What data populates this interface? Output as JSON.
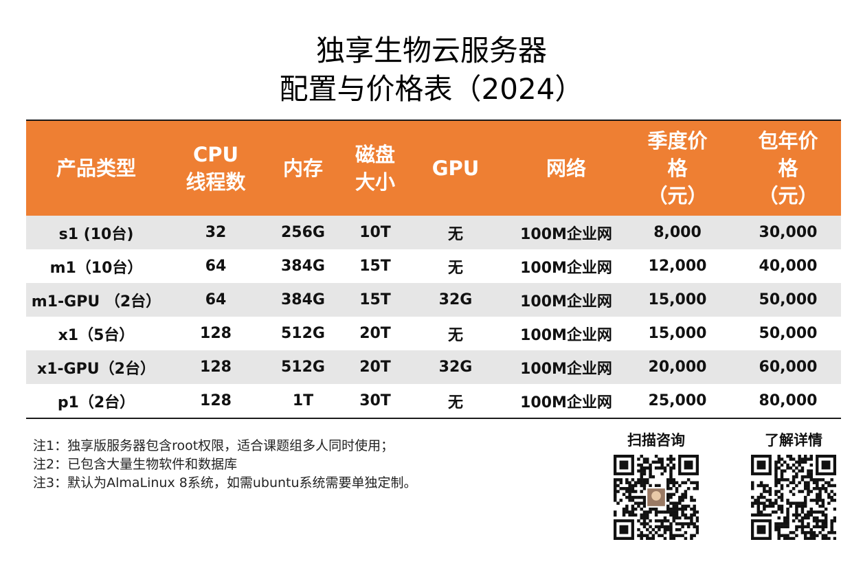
{
  "title": {
    "line1": "独享生物云服务器",
    "line2": "配置与价格表（2024）"
  },
  "table": {
    "headers": [
      "产品类型",
      "CPU\n线程数",
      "内存",
      "磁盘\n大小",
      "GPU",
      "网络",
      "季度价\n格\n（元）",
      "包年价\n格\n（元）"
    ],
    "rows": [
      [
        "s1 (10台)",
        "32",
        "256G",
        "10T",
        "无",
        "100M企业网",
        "8,000",
        "30,000"
      ],
      [
        "m1（10台）",
        "64",
        "384G",
        "15T",
        "无",
        "100M企业网",
        "12,000",
        "40,000"
      ],
      [
        "m1-GPU （2台）",
        "64",
        "384G",
        "15T",
        "32G",
        "100M企业网",
        "15,000",
        "50,000"
      ],
      [
        "x1（5台）",
        "128",
        "512G",
        "20T",
        "无",
        "100M企业网",
        "15,000",
        "50,000"
      ],
      [
        "x1-GPU（2台）",
        "128",
        "512G",
        "20T",
        "32G",
        "100M企业网",
        "20,000",
        "60,000"
      ],
      [
        "p1（2台）",
        "128",
        "1T",
        "30T",
        "无",
        "100M企业网",
        "25,000",
        "80,000"
      ]
    ],
    "header_color": "#ee7f33",
    "shade_color": "#e6e6e6"
  },
  "notes": [
    "注1：独享版服务器包含root权限，适合课题组多人同时使用；",
    "注2：已包含大量生物软件和数据库",
    "注3：默认为AlmaLinux 8系统，如需ubuntu系统需要单独定制。"
  ],
  "qr": {
    "consult_label": "扫描咨询",
    "details_label": "了解详情",
    "consult_icon": "qr-code-icon",
    "details_icon": "qr-code-icon"
  }
}
